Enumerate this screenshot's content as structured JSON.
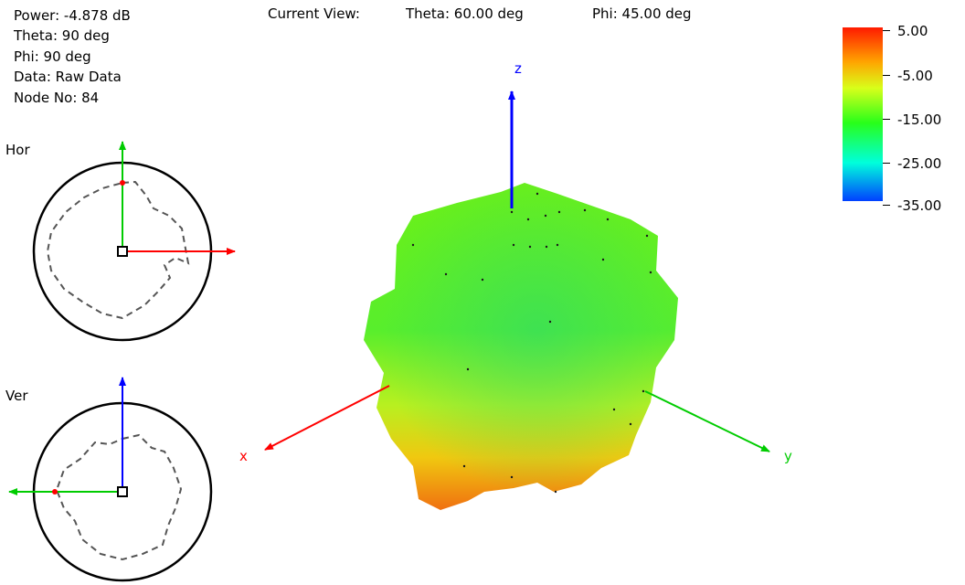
{
  "info": {
    "power": "Power: -4.878 dB",
    "theta": "Theta: 90 deg",
    "phi": "Phi: 90 deg",
    "data": "Data: Raw Data",
    "node": "Node No: 84"
  },
  "current_view": {
    "label": "Current View:",
    "theta": "Theta: 60.00 deg",
    "phi": "Phi: 45.00 deg"
  },
  "polar_plots": {
    "horizontal_label": "Hor",
    "vertical_label": "Ver"
  },
  "axes3d": {
    "x": "x",
    "y": "y",
    "z": "z"
  },
  "color_scale": {
    "labels": [
      "5.00",
      "-5.00",
      "-15.00",
      "-25.00",
      "-35.00"
    ],
    "colors": {
      "high": "#ff1a00",
      "mid": "#28ff1a",
      "low": "#0040ff"
    }
  },
  "axis_colors": {
    "x": "#ff0000",
    "y": "#00cc00",
    "z": "#0000ff"
  }
}
